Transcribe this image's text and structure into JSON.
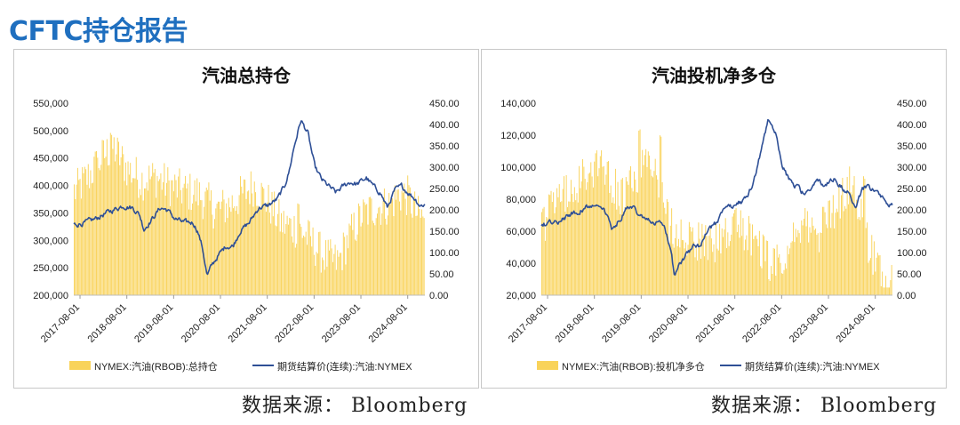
{
  "page": {
    "title": "CFTC持仓报告"
  },
  "colors": {
    "bar": "#f9d35a",
    "line": "#2e4f96",
    "title": "#1f6fbf"
  },
  "chart_data": [
    {
      "id": "left",
      "type": "bar+line",
      "title": "汽油总持仓",
      "legend": {
        "bar_label": "NYMEX:汽油(RBOB):总持仓",
        "line_label": "期货结算价(连续):汽油:NYMEX",
        "position": "bottom"
      },
      "source": "数据来源：  Bloomberg",
      "y_left": {
        "min": 200000,
        "max": 550000,
        "ticks": [
          "200,000",
          "250,000",
          "300,000",
          "350,000",
          "400,000",
          "450,000",
          "500,000",
          "550,000"
        ]
      },
      "y_right": {
        "min": 0,
        "max": 450,
        "ticks": [
          "0.00",
          "50.00",
          "100.00",
          "150.00",
          "200.00",
          "250.00",
          "300.00",
          "350.00",
          "400.00",
          "450.00"
        ]
      },
      "x_ticks": [
        "2017-08-01",
        "2018-08-01",
        "2019-08-01",
        "2020-08-01",
        "2021-08-01",
        "2022-08-01",
        "2023-08-01",
        "2024-08-01"
      ],
      "x_range": [
        2017.45,
        2024.95
      ],
      "bar_anchors": [
        [
          2017.5,
          390000
        ],
        [
          2017.8,
          420000
        ],
        [
          2018.1,
          455000
        ],
        [
          2018.3,
          470000
        ],
        [
          2018.6,
          430000
        ],
        [
          2018.9,
          410000
        ],
        [
          2019.2,
          415000
        ],
        [
          2019.5,
          400000
        ],
        [
          2019.8,
          390000
        ],
        [
          2020.1,
          385000
        ],
        [
          2020.3,
          370000
        ],
        [
          2020.5,
          355000
        ],
        [
          2020.8,
          365000
        ],
        [
          2021.0,
          380000
        ],
        [
          2021.3,
          400000
        ],
        [
          2021.6,
          370000
        ],
        [
          2021.9,
          330000
        ],
        [
          2022.1,
          325000
        ],
        [
          2022.3,
          320000
        ],
        [
          2022.5,
          300000
        ],
        [
          2022.7,
          280000
        ],
        [
          2022.9,
          265000
        ],
        [
          2023.1,
          260000
        ],
        [
          2023.3,
          300000
        ],
        [
          2023.6,
          345000
        ],
        [
          2023.9,
          360000
        ],
        [
          2024.2,
          365000
        ],
        [
          2024.4,
          385000
        ],
        [
          2024.6,
          380000
        ],
        [
          2024.8,
          345000
        ],
        [
          2024.95,
          340000
        ]
      ],
      "bar_spikes": [
        [
          2022.25,
          370000
        ],
        [
          2017.95,
          455000
        ],
        [
          2018.25,
          498000
        ]
      ],
      "line_anchors": [
        [
          2017.45,
          165
        ],
        [
          2017.7,
          170
        ],
        [
          2017.9,
          178
        ],
        [
          2018.1,
          190
        ],
        [
          2018.3,
          200
        ],
        [
          2018.5,
          210
        ],
        [
          2018.7,
          205
        ],
        [
          2018.85,
          190
        ],
        [
          2018.95,
          155
        ],
        [
          2019.1,
          175
        ],
        [
          2019.3,
          205
        ],
        [
          2019.45,
          200
        ],
        [
          2019.6,
          180
        ],
        [
          2019.8,
          170
        ],
        [
          2020.0,
          170
        ],
        [
          2020.1,
          150
        ],
        [
          2020.2,
          110
        ],
        [
          2020.3,
          45
        ],
        [
          2020.4,
          70
        ],
        [
          2020.55,
          95
        ],
        [
          2020.7,
          115
        ],
        [
          2020.85,
          115
        ],
        [
          2021.0,
          150
        ],
        [
          2021.2,
          170
        ],
        [
          2021.4,
          205
        ],
        [
          2021.6,
          210
        ],
        [
          2021.8,
          225
        ],
        [
          2021.95,
          255
        ],
        [
          2022.05,
          290
        ],
        [
          2022.15,
          345
        ],
        [
          2022.3,
          410
        ],
        [
          2022.45,
          380
        ],
        [
          2022.6,
          300
        ],
        [
          2022.75,
          270
        ],
        [
          2022.9,
          255
        ],
        [
          2023.05,
          240
        ],
        [
          2023.2,
          255
        ],
        [
          2023.35,
          265
        ],
        [
          2023.5,
          260
        ],
        [
          2023.7,
          275
        ],
        [
          2023.85,
          255
        ],
        [
          2024.0,
          240
        ],
        [
          2024.15,
          205
        ],
        [
          2024.3,
          245
        ],
        [
          2024.45,
          255
        ],
        [
          2024.6,
          240
        ],
        [
          2024.75,
          225
        ],
        [
          2024.85,
          210
        ],
        [
          2024.95,
          213
        ]
      ]
    },
    {
      "id": "right",
      "type": "bar+line",
      "title": "汽油投机净多仓",
      "legend": {
        "bar_label": "NYMEX:汽油(RBOB):投机净多仓",
        "line_label": "期货结算价(连续):汽油:NYMEX",
        "position": "bottom"
      },
      "source": "数据来源：  Bloomberg",
      "y_left": {
        "min": 20000,
        "max": 140000,
        "ticks": [
          "20,000",
          "40,000",
          "60,000",
          "80,000",
          "100,000",
          "120,000",
          "140,000"
        ]
      },
      "y_right": {
        "min": 0,
        "max": 450,
        "ticks": [
          "0.00",
          "50.00",
          "100.00",
          "150.00",
          "200.00",
          "250.00",
          "300.00",
          "350.00",
          "400.00",
          "450.00"
        ]
      },
      "x_ticks": [
        "2017-08-01",
        "2018-08-01",
        "2019-08-01",
        "2020-08-01",
        "2021-08-01",
        "2022-08-01",
        "2023-08-01",
        "2024-08-01"
      ],
      "x_range": [
        2017.45,
        2024.95
      ],
      "bar_anchors": [
        [
          2017.5,
          65000
        ],
        [
          2017.8,
          80000
        ],
        [
          2018.1,
          85000
        ],
        [
          2018.4,
          95000
        ],
        [
          2018.7,
          105000
        ],
        [
          2018.95,
          90000
        ],
        [
          2019.2,
          80000
        ],
        [
          2019.5,
          95000
        ],
        [
          2019.7,
          110000
        ],
        [
          2019.9,
          95000
        ],
        [
          2020.1,
          70000
        ],
        [
          2020.3,
          60000
        ],
        [
          2020.5,
          58000
        ],
        [
          2020.75,
          55000
        ],
        [
          2021.0,
          50000
        ],
        [
          2021.3,
          55000
        ],
        [
          2021.6,
          62000
        ],
        [
          2021.9,
          58000
        ],
        [
          2022.1,
          50000
        ],
        [
          2022.35,
          38000
        ],
        [
          2022.6,
          45000
        ],
        [
          2022.85,
          55000
        ],
        [
          2023.1,
          62000
        ],
        [
          2023.35,
          58000
        ],
        [
          2023.6,
          70000
        ],
        [
          2023.85,
          80000
        ],
        [
          2024.1,
          90000
        ],
        [
          2024.35,
          60000
        ],
        [
          2024.6,
          40000
        ],
        [
          2024.8,
          30000
        ],
        [
          2024.95,
          28000
        ]
      ],
      "bar_spikes": [
        [
          2019.55,
          127000
        ],
        [
          2020.0,
          122000
        ],
        [
          2024.35,
          95000
        ]
      ],
      "line_anchors": [
        [
          2017.45,
          165
        ],
        [
          2017.7,
          170
        ],
        [
          2017.9,
          178
        ],
        [
          2018.1,
          190
        ],
        [
          2018.3,
          200
        ],
        [
          2018.5,
          210
        ],
        [
          2018.7,
          205
        ],
        [
          2018.85,
          190
        ],
        [
          2018.95,
          155
        ],
        [
          2019.1,
          175
        ],
        [
          2019.3,
          205
        ],
        [
          2019.45,
          200
        ],
        [
          2019.6,
          180
        ],
        [
          2019.8,
          170
        ],
        [
          2020.0,
          170
        ],
        [
          2020.1,
          150
        ],
        [
          2020.2,
          110
        ],
        [
          2020.3,
          45
        ],
        [
          2020.4,
          70
        ],
        [
          2020.55,
          95
        ],
        [
          2020.7,
          115
        ],
        [
          2020.85,
          115
        ],
        [
          2021.0,
          150
        ],
        [
          2021.2,
          170
        ],
        [
          2021.4,
          205
        ],
        [
          2021.6,
          210
        ],
        [
          2021.8,
          225
        ],
        [
          2021.95,
          255
        ],
        [
          2022.05,
          290
        ],
        [
          2022.15,
          345
        ],
        [
          2022.3,
          410
        ],
        [
          2022.45,
          380
        ],
        [
          2022.6,
          300
        ],
        [
          2022.75,
          270
        ],
        [
          2022.9,
          255
        ],
        [
          2023.05,
          240
        ],
        [
          2023.2,
          255
        ],
        [
          2023.35,
          265
        ],
        [
          2023.5,
          260
        ],
        [
          2023.7,
          275
        ],
        [
          2023.85,
          255
        ],
        [
          2024.0,
          240
        ],
        [
          2024.15,
          205
        ],
        [
          2024.3,
          245
        ],
        [
          2024.45,
          255
        ],
        [
          2024.6,
          240
        ],
        [
          2024.75,
          225
        ],
        [
          2024.85,
          210
        ],
        [
          2024.95,
          213
        ]
      ]
    }
  ]
}
